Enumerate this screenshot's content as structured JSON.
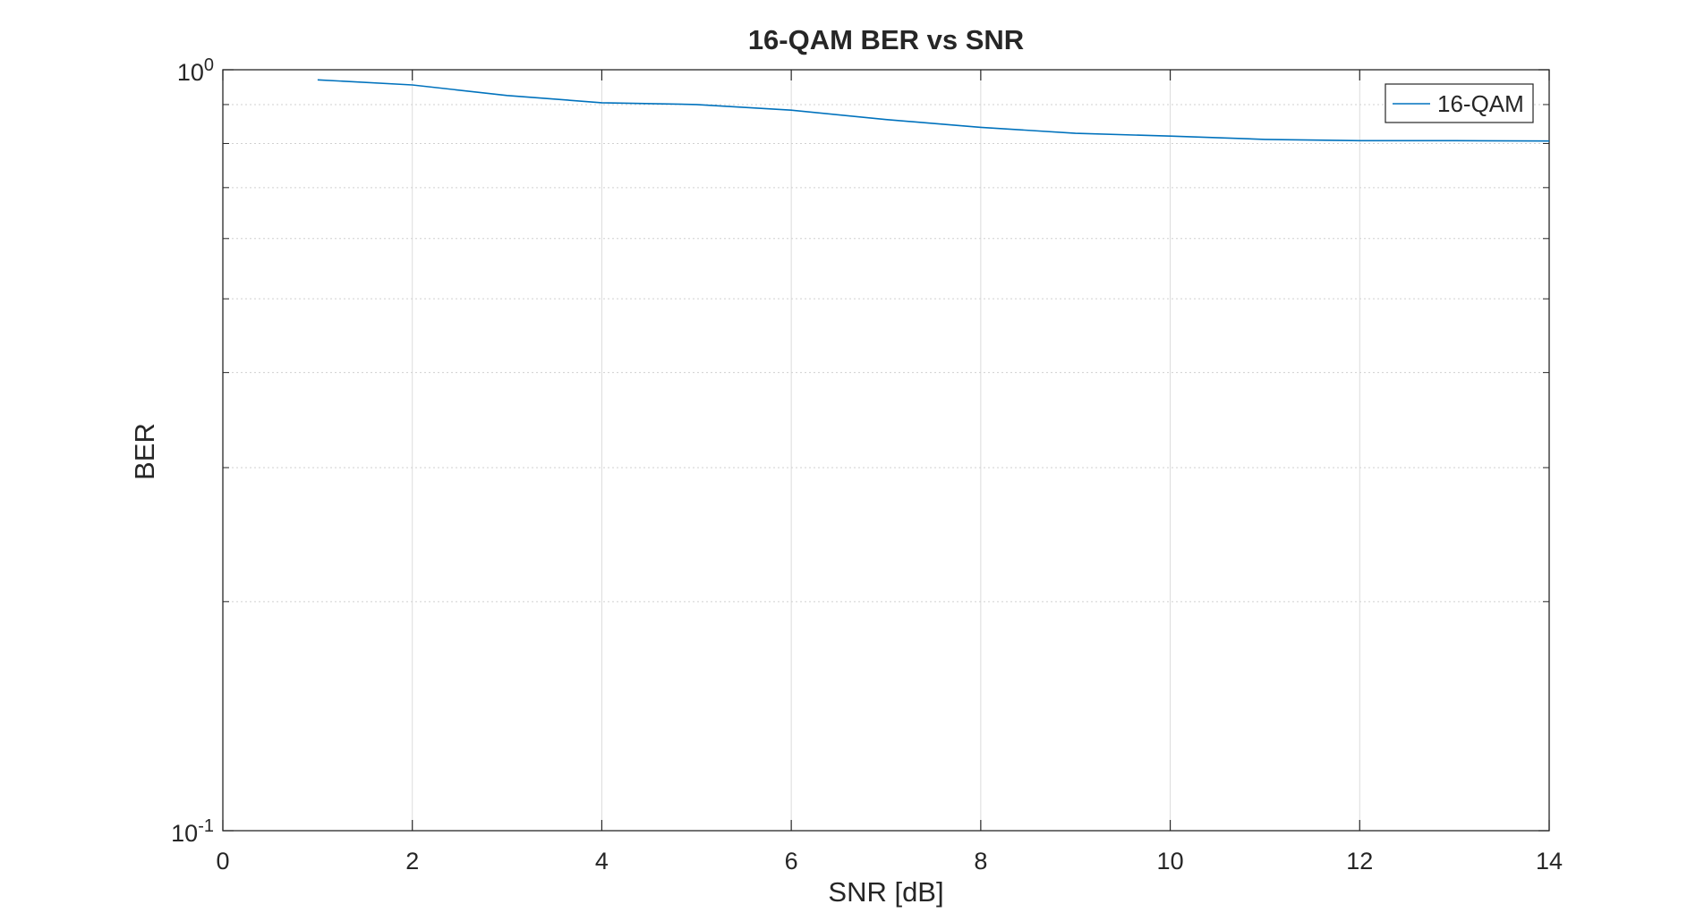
{
  "chart_data": {
    "type": "line",
    "title": "16-QAM BER vs SNR",
    "xlabel": "SNR [dB]",
    "ylabel": "BER",
    "xlim": [
      0,
      14
    ],
    "ylim": [
      0.1,
      1
    ],
    "yscale": "log",
    "xticks": [
      0,
      2,
      4,
      6,
      8,
      10,
      12,
      14
    ],
    "xtick_labels": [
      "0",
      "2",
      "4",
      "6",
      "8",
      "10",
      "12",
      "14"
    ],
    "yticks": [
      {
        "value": 1,
        "base": "10",
        "exp": "0"
      },
      {
        "value": 0.1,
        "base": "10",
        "exp": "-1"
      }
    ],
    "grid": true,
    "legend_position": "top-right",
    "series": [
      {
        "name": "16-QAM",
        "color": "#0072BD",
        "x": [
          1,
          2,
          3,
          4,
          5,
          6,
          7,
          8,
          9,
          10,
          11,
          12,
          13,
          14
        ],
        "y": [
          0.97,
          0.955,
          0.925,
          0.905,
          0.9,
          0.885,
          0.86,
          0.84,
          0.825,
          0.818,
          0.81,
          0.807,
          0.807,
          0.806
        ]
      }
    ]
  }
}
